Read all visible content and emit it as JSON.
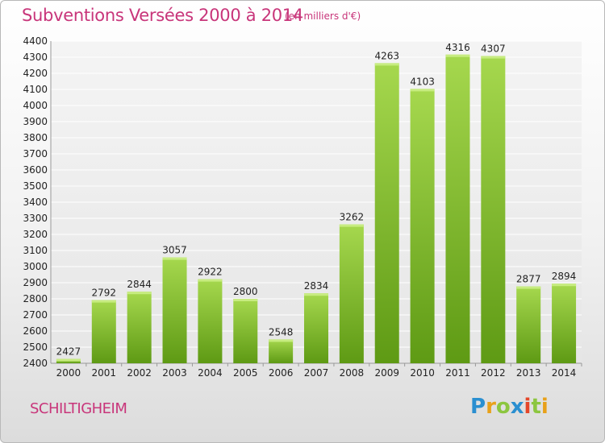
{
  "header": {
    "title": "Subventions Versées 2000 à 2014",
    "subtitle": "(en milliers d'€)"
  },
  "footer": {
    "city": "SCHILTIGHEIM",
    "logo": "Proxiti"
  },
  "colors": {
    "accent": "#c8357a",
    "bar_top": "#a6d84e",
    "bar_bottom": "#5e9a14"
  },
  "chart_data": {
    "type": "bar",
    "categories": [
      "2000",
      "2001",
      "2002",
      "2003",
      "2004",
      "2005",
      "2006",
      "2007",
      "2008",
      "2009",
      "2010",
      "2011",
      "2012",
      "2013",
      "2014"
    ],
    "values": [
      2427,
      2792,
      2844,
      3057,
      2922,
      2800,
      2548,
      2834,
      3262,
      4263,
      4103,
      4316,
      4307,
      2877,
      2894
    ],
    "title": "Subventions Versées 2000 à 2014",
    "subtitle": "(en milliers d'€)",
    "xlabel": "",
    "ylabel": "",
    "ylim": [
      2400,
      4400
    ],
    "yticks": [
      2400,
      2500,
      2600,
      2700,
      2800,
      2900,
      3000,
      3100,
      3200,
      3300,
      3400,
      3500,
      3600,
      3700,
      3800,
      3900,
      4000,
      4100,
      4200,
      4300,
      4400
    ],
    "grid": true,
    "data_labels": true
  }
}
